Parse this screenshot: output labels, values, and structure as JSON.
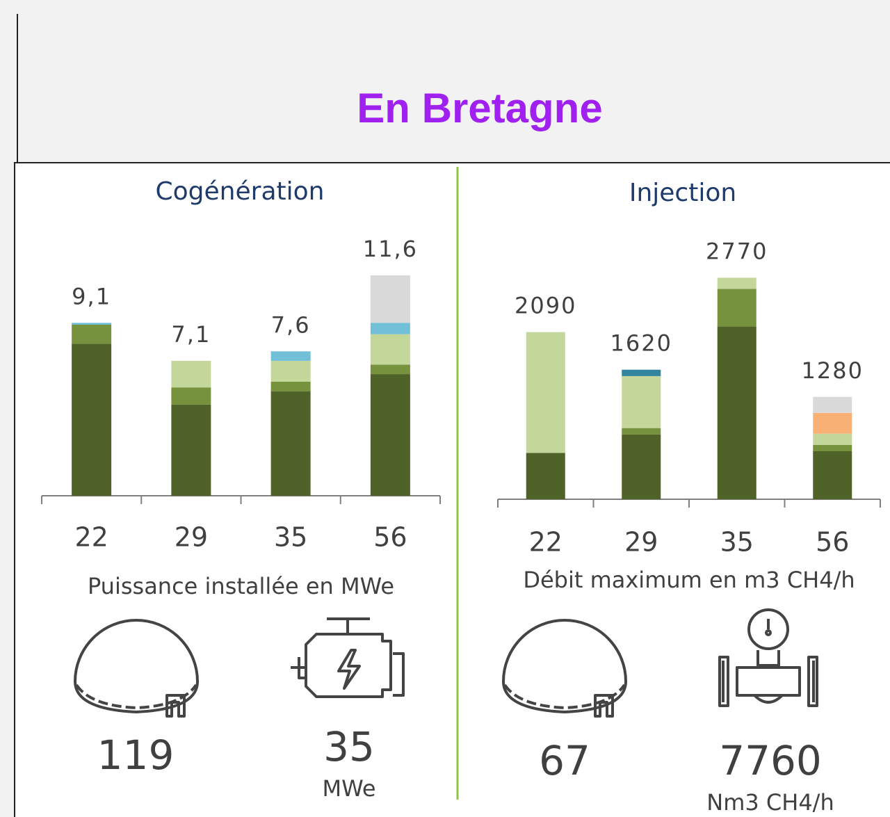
{
  "title": "En Bretagne",
  "chart_data": [
    {
      "type": "bar",
      "stacked": true,
      "title": "Cogénération",
      "x_label": "Puissance installée en MWe",
      "categories": [
        "22",
        "29",
        "35",
        "56"
      ],
      "ylim": [
        0,
        12
      ],
      "totals": [
        9.1,
        7.1,
        7.6,
        11.6
      ],
      "total_labels": [
        "9,1",
        "7,1",
        "7,6",
        "11,6"
      ],
      "series": [
        {
          "color": "#4f6228",
          "values": [
            8.0,
            4.8,
            5.5,
            6.4
          ]
        },
        {
          "color": "#76923c",
          "values": [
            1.0,
            0.9,
            0.5,
            0.5
          ]
        },
        {
          "color": "#c4d79b",
          "values": [
            0,
            1.4,
            1.1,
            1.6
          ]
        },
        {
          "color": "#72c0d8",
          "values": [
            0.1,
            0,
            0.5,
            0.6
          ]
        },
        {
          "color": "#d9d9d9",
          "values": [
            0,
            0,
            0,
            2.5
          ]
        }
      ]
    },
    {
      "type": "bar",
      "stacked": true,
      "title": "Injection",
      "x_label": "Débit maximum en m3 CH4/h",
      "categories": [
        "22",
        "29",
        "35",
        "56"
      ],
      "ylim": [
        0,
        3000
      ],
      "totals": [
        2090,
        1620,
        2770,
        1280
      ],
      "series": [
        {
          "color": "#4f6228",
          "values": [
            580,
            810,
            2160,
            600
          ]
        },
        {
          "color": "#76923c",
          "values": [
            0,
            80,
            470,
            80
          ]
        },
        {
          "color": "#c4d79b",
          "values": [
            1510,
            650,
            140,
            140
          ]
        },
        {
          "color": "#31859c",
          "values": [
            0,
            80,
            0,
            0
          ]
        },
        {
          "color": "#f9b074",
          "values": [
            0,
            0,
            0,
            260
          ]
        },
        {
          "color": "#d9d9d9",
          "values": [
            0,
            0,
            0,
            200
          ]
        }
      ]
    }
  ],
  "stats": [
    {
      "value": 119
    },
    {
      "value": 35,
      "unit": "MWe"
    },
    {
      "value": 67
    },
    {
      "value": 7760,
      "unit": "Nm3 CH4/h"
    }
  ]
}
